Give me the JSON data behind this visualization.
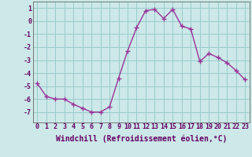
{
  "x": [
    0,
    1,
    2,
    3,
    4,
    5,
    6,
    7,
    8,
    9,
    10,
    11,
    12,
    13,
    14,
    15,
    16,
    17,
    18,
    19,
    20,
    21,
    22,
    23
  ],
  "y": [
    -4.8,
    -5.8,
    -6.0,
    -6.0,
    -6.4,
    -6.7,
    -7.0,
    -7.0,
    -6.6,
    -4.4,
    -2.3,
    -0.5,
    0.8,
    0.9,
    0.2,
    0.9,
    -0.4,
    -0.6,
    -3.1,
    -2.5,
    -2.8,
    -3.2,
    -3.8,
    -4.5
  ],
  "line_color": "#993399",
  "marker": "+",
  "marker_size": 4,
  "bg_color": "#cce8e8",
  "grid_color": "#99cccc",
  "xlabel": "Windchill (Refroidissement éolien,°C)",
  "xlabel_fontsize": 7,
  "ylim": [
    -7.8,
    1.5
  ],
  "yticks": [
    -7,
    -6,
    -5,
    -4,
    -3,
    -2,
    -1,
    0,
    1
  ],
  "xtick_labels": [
    "0",
    "1",
    "2",
    "3",
    "4",
    "5",
    "6",
    "7",
    "8",
    "9",
    "10",
    "11",
    "12",
    "13",
    "14",
    "15",
    "16",
    "17",
    "18",
    "19",
    "20",
    "21",
    "22",
    "23"
  ],
  "tick_fontsize": 6,
  "line_width": 1.0
}
